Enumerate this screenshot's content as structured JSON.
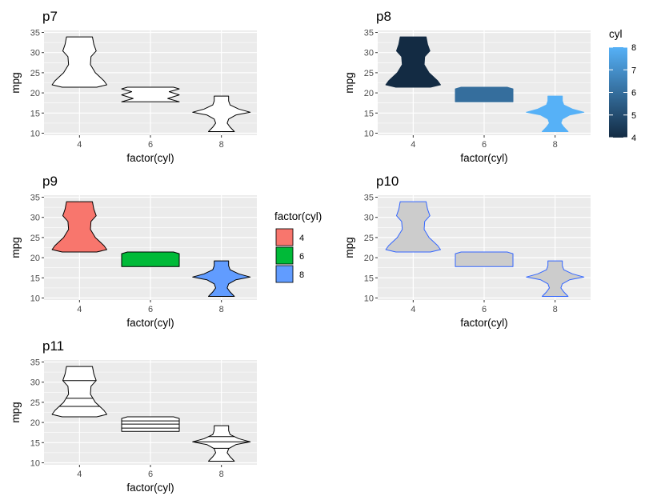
{
  "chart_data": [
    {
      "id": "p7",
      "title": "p7",
      "type": "violin",
      "xlabel": "factor(cyl)",
      "ylabel": "mpg",
      "categories": [
        "4",
        "6",
        "8"
      ],
      "ylim": [
        9.5,
        35.5
      ],
      "yticks": [
        10,
        15,
        20,
        25,
        30,
        35
      ],
      "fill": "#ffffff",
      "stroke": "#000000",
      "quantile_lines": false,
      "violins": [
        {
          "x": "4",
          "profile": [
            [
              21.4,
              0.6
            ],
            [
              22.0,
              0.95
            ],
            [
              23.0,
              0.85
            ],
            [
              25.0,
              0.55
            ],
            [
              27.0,
              0.38
            ],
            [
              29.0,
              0.4
            ],
            [
              30.4,
              0.58
            ],
            [
              32.0,
              0.5
            ],
            [
              33.9,
              0.45
            ]
          ]
        },
        {
          "x": "6",
          "profile": [
            [
              17.8,
              1.0
            ],
            [
              18.6,
              0.6
            ],
            [
              19.5,
              1.0
            ],
            [
              20.3,
              0.65
            ],
            [
              21.0,
              1.0
            ],
            [
              21.4,
              0.8
            ]
          ]
        },
        {
          "x": "8",
          "profile": [
            [
              10.4,
              0.45
            ],
            [
              11.5,
              0.3
            ],
            [
              12.5,
              0.2
            ],
            [
              13.5,
              0.25
            ],
            [
              14.5,
              0.5
            ],
            [
              15.2,
              1.0
            ],
            [
              16.0,
              0.6
            ],
            [
              17.0,
              0.3
            ],
            [
              18.0,
              0.25
            ],
            [
              19.2,
              0.25
            ]
          ]
        }
      ]
    },
    {
      "id": "p8",
      "title": "p8",
      "type": "violin",
      "xlabel": "factor(cyl)",
      "ylabel": "mpg",
      "categories": [
        "4",
        "6",
        "8"
      ],
      "ylim": [
        9.5,
        35.5
      ],
      "yticks": [
        10,
        15,
        20,
        25,
        30,
        35
      ],
      "fill_values": [
        4,
        6,
        8
      ],
      "stroke": "none",
      "quantile_lines": false,
      "violins": [
        {
          "x": "4",
          "profile": [
            [
              21.4,
              0.6
            ],
            [
              22.0,
              0.95
            ],
            [
              23.0,
              0.85
            ],
            [
              25.0,
              0.55
            ],
            [
              27.0,
              0.38
            ],
            [
              29.0,
              0.4
            ],
            [
              30.4,
              0.58
            ],
            [
              32.0,
              0.5
            ],
            [
              33.9,
              0.45
            ]
          ]
        },
        {
          "x": "6",
          "profile": [
            [
              17.8,
              1.0
            ],
            [
              18.6,
              1.0
            ],
            [
              19.5,
              1.0
            ],
            [
              20.3,
              1.0
            ],
            [
              21.0,
              1.0
            ],
            [
              21.4,
              0.8
            ]
          ]
        },
        {
          "x": "8",
          "profile": [
            [
              10.4,
              0.45
            ],
            [
              11.5,
              0.3
            ],
            [
              12.5,
              0.2
            ],
            [
              13.5,
              0.25
            ],
            [
              14.5,
              0.5
            ],
            [
              15.2,
              1.0
            ],
            [
              16.0,
              0.6
            ],
            [
              17.0,
              0.3
            ],
            [
              18.0,
              0.25
            ],
            [
              19.2,
              0.25
            ]
          ]
        }
      ],
      "legend": {
        "title": "cyl",
        "type": "colorbar",
        "min": 4,
        "max": 8,
        "breaks": [
          4,
          5,
          6,
          7,
          8
        ],
        "low_color": "#132b43",
        "high_color": "#56b1f7"
      }
    },
    {
      "id": "p9",
      "title": "p9",
      "type": "violin",
      "xlabel": "factor(cyl)",
      "ylabel": "mpg",
      "categories": [
        "4",
        "6",
        "8"
      ],
      "ylim": [
        9.5,
        35.5
      ],
      "yticks": [
        10,
        15,
        20,
        25,
        30,
        35
      ],
      "fills": [
        "#f8766d",
        "#00ba38",
        "#619cff"
      ],
      "stroke": "#000000",
      "quantile_lines": false,
      "violins": [
        {
          "x": "4",
          "profile": [
            [
              21.4,
              0.6
            ],
            [
              22.0,
              0.95
            ],
            [
              23.0,
              0.85
            ],
            [
              25.0,
              0.55
            ],
            [
              27.0,
              0.38
            ],
            [
              29.0,
              0.4
            ],
            [
              30.4,
              0.58
            ],
            [
              32.0,
              0.5
            ],
            [
              33.9,
              0.45
            ]
          ]
        },
        {
          "x": "6",
          "profile": [
            [
              17.8,
              1.0
            ],
            [
              18.6,
              1.0
            ],
            [
              19.5,
              1.0
            ],
            [
              20.3,
              1.0
            ],
            [
              21.0,
              1.0
            ],
            [
              21.4,
              0.8
            ]
          ]
        },
        {
          "x": "8",
          "profile": [
            [
              10.4,
              0.45
            ],
            [
              11.5,
              0.3
            ],
            [
              12.5,
              0.2
            ],
            [
              13.5,
              0.25
            ],
            [
              14.5,
              0.5
            ],
            [
              15.2,
              1.0
            ],
            [
              16.0,
              0.6
            ],
            [
              17.0,
              0.3
            ],
            [
              18.0,
              0.25
            ],
            [
              19.2,
              0.25
            ]
          ]
        }
      ],
      "legend": {
        "title": "factor(cyl)",
        "type": "discrete",
        "entries": [
          {
            "label": "4",
            "color": "#f8766d"
          },
          {
            "label": "6",
            "color": "#00ba38"
          },
          {
            "label": "8",
            "color": "#619cff"
          }
        ]
      }
    },
    {
      "id": "p10",
      "title": "p10",
      "type": "violin",
      "xlabel": "factor(cyl)",
      "ylabel": "mpg",
      "categories": [
        "4",
        "6",
        "8"
      ],
      "ylim": [
        9.5,
        35.5
      ],
      "yticks": [
        10,
        15,
        20,
        25,
        30,
        35
      ],
      "fill": "#cccccc",
      "stroke": "#3366ff",
      "quantile_lines": false,
      "violins": [
        {
          "x": "4",
          "profile": [
            [
              21.4,
              0.6
            ],
            [
              22.0,
              0.95
            ],
            [
              23.0,
              0.85
            ],
            [
              25.0,
              0.55
            ],
            [
              27.0,
              0.38
            ],
            [
              29.0,
              0.4
            ],
            [
              30.4,
              0.58
            ],
            [
              32.0,
              0.5
            ],
            [
              33.9,
              0.45
            ]
          ]
        },
        {
          "x": "6",
          "profile": [
            [
              17.8,
              1.0
            ],
            [
              18.6,
              1.0
            ],
            [
              19.5,
              1.0
            ],
            [
              20.3,
              1.0
            ],
            [
              21.0,
              1.0
            ],
            [
              21.4,
              0.8
            ]
          ]
        },
        {
          "x": "8",
          "profile": [
            [
              10.4,
              0.45
            ],
            [
              11.5,
              0.3
            ],
            [
              12.5,
              0.2
            ],
            [
              13.5,
              0.25
            ],
            [
              14.5,
              0.5
            ],
            [
              15.2,
              1.0
            ],
            [
              16.0,
              0.6
            ],
            [
              17.0,
              0.3
            ],
            [
              18.0,
              0.25
            ],
            [
              19.2,
              0.25
            ]
          ]
        }
      ]
    },
    {
      "id": "p11",
      "title": "p11",
      "type": "violin",
      "xlabel": "factor(cyl)",
      "ylabel": "mpg",
      "categories": [
        "4",
        "6",
        "8"
      ],
      "ylim": [
        9.5,
        35.5
      ],
      "yticks": [
        10,
        15,
        20,
        25,
        30,
        35
      ],
      "fill": "#ffffff",
      "stroke": "#000000",
      "quantile_lines": true,
      "violins": [
        {
          "x": "4",
          "profile": [
            [
              21.4,
              0.6
            ],
            [
              22.0,
              0.95
            ],
            [
              23.0,
              0.85
            ],
            [
              25.0,
              0.55
            ],
            [
              27.0,
              0.38
            ],
            [
              29.0,
              0.4
            ],
            [
              30.4,
              0.58
            ],
            [
              32.0,
              0.5
            ],
            [
              33.9,
              0.45
            ]
          ],
          "lines": [
            24.0,
            26.0,
            30.4
          ]
        },
        {
          "x": "6",
          "profile": [
            [
              17.8,
              1.0
            ],
            [
              18.6,
              1.0
            ],
            [
              19.5,
              1.0
            ],
            [
              20.3,
              1.0
            ],
            [
              21.0,
              1.0
            ],
            [
              21.4,
              0.8
            ]
          ],
          "lines": [
            18.6,
            19.6,
            20.4
          ]
        },
        {
          "x": "8",
          "profile": [
            [
              10.4,
              0.45
            ],
            [
              11.5,
              0.3
            ],
            [
              12.5,
              0.2
            ],
            [
              13.5,
              0.25
            ],
            [
              14.5,
              0.5
            ],
            [
              15.2,
              1.0
            ],
            [
              16.0,
              0.6
            ],
            [
              17.0,
              0.3
            ],
            [
              18.0,
              0.25
            ],
            [
              19.2,
              0.25
            ]
          ],
          "lines": [
            13.6,
            15.2,
            16.5
          ]
        }
      ]
    }
  ]
}
